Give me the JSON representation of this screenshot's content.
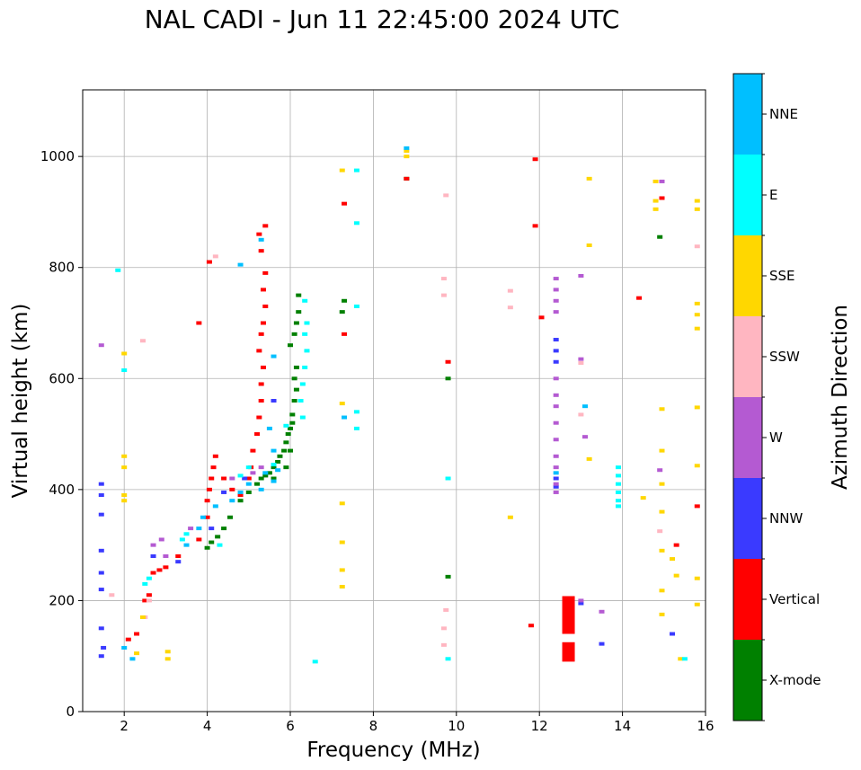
{
  "chart_data": {
    "type": "scatter",
    "title": "NAL CADI - Jun 11 22:45:00 2024 UTC",
    "xlabel": "Frequency (MHz)",
    "ylabel": "Virtual height (km)",
    "xlim": [
      1,
      16
    ],
    "ylim": [
      0,
      1120
    ],
    "xticks": [
      2,
      4,
      6,
      8,
      10,
      12,
      14,
      16
    ],
    "yticks": [
      0,
      200,
      400,
      600,
      800,
      1000
    ],
    "grid": true,
    "colorbar": {
      "label": "Azimuth Direction",
      "categories": [
        {
          "name": "X-mode",
          "color": "#008000"
        },
        {
          "name": "Vertical",
          "color": "#ff0000"
        },
        {
          "name": "NNW",
          "color": "#3a3aff"
        },
        {
          "name": "W",
          "color": "#b45ad2"
        },
        {
          "name": "SSW",
          "color": "#ffb6c1"
        },
        {
          "name": "SSE",
          "color": "#ffd700"
        },
        {
          "name": "E",
          "color": "#00ffff"
        },
        {
          "name": "NNE",
          "color": "#00bfff"
        }
      ]
    },
    "series": [
      {
        "name": "X-mode",
        "points": [
          [
            4.0,
            295
          ],
          [
            4.1,
            305
          ],
          [
            4.25,
            315
          ],
          [
            4.4,
            330
          ],
          [
            4.55,
            350
          ],
          [
            4.8,
            380
          ],
          [
            5.0,
            395
          ],
          [
            5.2,
            410
          ],
          [
            5.4,
            425
          ],
          [
            5.5,
            430
          ],
          [
            5.6,
            440
          ],
          [
            5.7,
            450
          ],
          [
            5.75,
            460
          ],
          [
            5.85,
            470
          ],
          [
            5.9,
            485
          ],
          [
            5.95,
            500
          ],
          [
            6.0,
            510
          ],
          [
            6.05,
            520
          ],
          [
            6.05,
            535
          ],
          [
            6.1,
            560
          ],
          [
            6.15,
            580
          ],
          [
            6.1,
            600
          ],
          [
            6.15,
            620
          ],
          [
            6.0,
            660
          ],
          [
            6.1,
            680
          ],
          [
            6.15,
            700
          ],
          [
            6.2,
            720
          ],
          [
            6.2,
            750
          ],
          [
            7.25,
            720
          ],
          [
            7.3,
            740
          ],
          [
            8.8,
            960
          ],
          [
            9.8,
            600
          ],
          [
            9.8,
            243
          ],
          [
            14.9,
            855
          ],
          [
            5.3,
            420
          ],
          [
            5.6,
            420
          ],
          [
            5.9,
            440
          ],
          [
            6.0,
            470
          ]
        ]
      },
      {
        "name": "Vertical",
        "points": [
          [
            2.1,
            130
          ],
          [
            2.3,
            140
          ],
          [
            2.5,
            200
          ],
          [
            2.6,
            210
          ],
          [
            2.7,
            250
          ],
          [
            2.85,
            255
          ],
          [
            3.0,
            260
          ],
          [
            3.3,
            280
          ],
          [
            3.8,
            310
          ],
          [
            4.0,
            350
          ],
          [
            4.0,
            380
          ],
          [
            4.05,
            400
          ],
          [
            4.1,
            420
          ],
          [
            4.15,
            440
          ],
          [
            4.2,
            460
          ],
          [
            4.4,
            420
          ],
          [
            4.6,
            400
          ],
          [
            4.8,
            390
          ],
          [
            5.0,
            420
          ],
          [
            5.05,
            440
          ],
          [
            5.1,
            470
          ],
          [
            5.2,
            500
          ],
          [
            5.25,
            530
          ],
          [
            5.3,
            560
          ],
          [
            5.3,
            590
          ],
          [
            5.35,
            620
          ],
          [
            5.25,
            650
          ],
          [
            5.3,
            680
          ],
          [
            5.35,
            700
          ],
          [
            5.4,
            730
          ],
          [
            5.35,
            760
          ],
          [
            5.4,
            790
          ],
          [
            5.3,
            830
          ],
          [
            5.25,
            860
          ],
          [
            5.4,
            875
          ],
          [
            4.05,
            810
          ],
          [
            3.8,
            700
          ],
          [
            7.3,
            680
          ],
          [
            7.3,
            915
          ],
          [
            8.8,
            960
          ],
          [
            9.8,
            630
          ],
          [
            11.9,
            995
          ],
          [
            11.9,
            875
          ],
          [
            11.8,
            155
          ],
          [
            12.05,
            710
          ],
          [
            14.4,
            745
          ],
          [
            14.95,
            925
          ],
          [
            15.3,
            300
          ],
          [
            15.8,
            370
          ]
        ]
      },
      {
        "name": "NNW",
        "points": [
          [
            1.45,
            410
          ],
          [
            1.45,
            390
          ],
          [
            1.45,
            355
          ],
          [
            1.45,
            290
          ],
          [
            1.45,
            250
          ],
          [
            1.45,
            220
          ],
          [
            1.45,
            150
          ],
          [
            1.45,
            100
          ],
          [
            1.5,
            115
          ],
          [
            2.7,
            280
          ],
          [
            3.3,
            270
          ],
          [
            4.1,
            330
          ],
          [
            4.4,
            395
          ],
          [
            4.9,
            420
          ],
          [
            5.6,
            560
          ],
          [
            12.4,
            670
          ],
          [
            12.4,
            650
          ],
          [
            12.4,
            630
          ],
          [
            12.4,
            420
          ],
          [
            12.4,
            405
          ],
          [
            13.0,
            195
          ],
          [
            13.5,
            122
          ],
          [
            15.2,
            140
          ]
        ]
      },
      {
        "name": "W",
        "points": [
          [
            1.45,
            660
          ],
          [
            2.7,
            300
          ],
          [
            2.9,
            310
          ],
          [
            3.0,
            280
          ],
          [
            3.6,
            330
          ],
          [
            4.6,
            420
          ],
          [
            5.1,
            430
          ],
          [
            5.3,
            440
          ],
          [
            12.4,
            780
          ],
          [
            12.4,
            760
          ],
          [
            12.4,
            740
          ],
          [
            12.4,
            720
          ],
          [
            12.4,
            600
          ],
          [
            12.4,
            570
          ],
          [
            12.4,
            550
          ],
          [
            12.4,
            520
          ],
          [
            12.4,
            490
          ],
          [
            12.4,
            460
          ],
          [
            12.4,
            440
          ],
          [
            12.4,
            410
          ],
          [
            12.4,
            395
          ],
          [
            13.0,
            785
          ],
          [
            13.0,
            635
          ],
          [
            13.1,
            495
          ],
          [
            13.0,
            200
          ],
          [
            13.5,
            180
          ],
          [
            14.95,
            955
          ],
          [
            14.9,
            435
          ]
        ]
      },
      {
        "name": "SSW",
        "points": [
          [
            1.7,
            210
          ],
          [
            2.5,
            170
          ],
          [
            2.6,
            200
          ],
          [
            2.45,
            668
          ],
          [
            4.2,
            820
          ],
          [
            9.75,
            930
          ],
          [
            9.7,
            780
          ],
          [
            9.7,
            750
          ],
          [
            9.75,
            183
          ],
          [
            9.7,
            150
          ],
          [
            9.7,
            120
          ],
          [
            11.3,
            758
          ],
          [
            11.3,
            728
          ],
          [
            13.0,
            628
          ],
          [
            13.0,
            535
          ],
          [
            15.8,
            838
          ],
          [
            14.9,
            325
          ]
        ]
      },
      {
        "name": "SSE",
        "points": [
          [
            2.0,
            645
          ],
          [
            2.0,
            460
          ],
          [
            2.0,
            440
          ],
          [
            2.0,
            380
          ],
          [
            2.0,
            390
          ],
          [
            2.3,
            105
          ],
          [
            2.45,
            170
          ],
          [
            3.05,
            108
          ],
          [
            3.05,
            95
          ],
          [
            7.25,
            975
          ],
          [
            7.25,
            555
          ],
          [
            7.25,
            375
          ],
          [
            7.25,
            305
          ],
          [
            7.25,
            255
          ],
          [
            7.25,
            225
          ],
          [
            8.8,
            1010
          ],
          [
            8.8,
            1000
          ],
          [
            11.3,
            350
          ],
          [
            13.2,
            960
          ],
          [
            13.2,
            840
          ],
          [
            13.2,
            455
          ],
          [
            14.5,
            385
          ],
          [
            14.8,
            955
          ],
          [
            14.8,
            920
          ],
          [
            14.8,
            905
          ],
          [
            14.95,
            545
          ],
          [
            14.95,
            470
          ],
          [
            14.95,
            410
          ],
          [
            14.95,
            360
          ],
          [
            14.95,
            290
          ],
          [
            14.95,
            218
          ],
          [
            14.95,
            175
          ],
          [
            15.2,
            275
          ],
          [
            15.3,
            245
          ],
          [
            15.8,
            920
          ],
          [
            15.8,
            905
          ],
          [
            15.8,
            735
          ],
          [
            15.8,
            715
          ],
          [
            15.8,
            690
          ],
          [
            15.8,
            548
          ],
          [
            15.8,
            443
          ],
          [
            15.8,
            240
          ],
          [
            15.8,
            193
          ],
          [
            15.4,
            95
          ]
        ]
      },
      {
        "name": "E",
        "points": [
          [
            1.85,
            795
          ],
          [
            2.0,
            615
          ],
          [
            2.6,
            240
          ],
          [
            2.5,
            230
          ],
          [
            3.4,
            310
          ],
          [
            3.5,
            320
          ],
          [
            4.3,
            300
          ],
          [
            4.8,
            425
          ],
          [
            5.0,
            440
          ],
          [
            5.6,
            445
          ],
          [
            5.9,
            515
          ],
          [
            6.3,
            530
          ],
          [
            6.25,
            560
          ],
          [
            6.3,
            590
          ],
          [
            6.35,
            620
          ],
          [
            6.4,
            650
          ],
          [
            6.35,
            680
          ],
          [
            6.4,
            700
          ],
          [
            6.35,
            740
          ],
          [
            6.6,
            90
          ],
          [
            7.6,
            975
          ],
          [
            7.6,
            880
          ],
          [
            7.6,
            730
          ],
          [
            7.6,
            540
          ],
          [
            7.6,
            510
          ],
          [
            9.8,
            420
          ],
          [
            9.8,
            95
          ],
          [
            13.9,
            440
          ],
          [
            13.9,
            425
          ],
          [
            13.9,
            410
          ],
          [
            13.9,
            395
          ],
          [
            13.9,
            380
          ],
          [
            13.9,
            370
          ],
          [
            15.5,
            95
          ]
        ]
      },
      {
        "name": "NNE",
        "points": [
          [
            2.0,
            115
          ],
          [
            2.2,
            95
          ],
          [
            3.5,
            300
          ],
          [
            3.8,
            330
          ],
          [
            3.9,
            350
          ],
          [
            4.2,
            370
          ],
          [
            4.6,
            380
          ],
          [
            4.8,
            395
          ],
          [
            5.0,
            410
          ],
          [
            5.3,
            400
          ],
          [
            5.4,
            430
          ],
          [
            5.6,
            415
          ],
          [
            5.7,
            435
          ],
          [
            5.6,
            470
          ],
          [
            5.5,
            510
          ],
          [
            5.6,
            640
          ],
          [
            4.8,
            805
          ],
          [
            5.3,
            850
          ],
          [
            7.3,
            530
          ],
          [
            8.8,
            1015
          ],
          [
            12.4,
            430
          ],
          [
            13.1,
            550
          ]
        ]
      }
    ],
    "bars": [
      {
        "name": "Vertical",
        "x": 12.7,
        "y_from": 90,
        "y_to": 125
      },
      {
        "name": "Vertical",
        "x": 12.7,
        "y_from": 140,
        "y_to": 208
      }
    ]
  }
}
